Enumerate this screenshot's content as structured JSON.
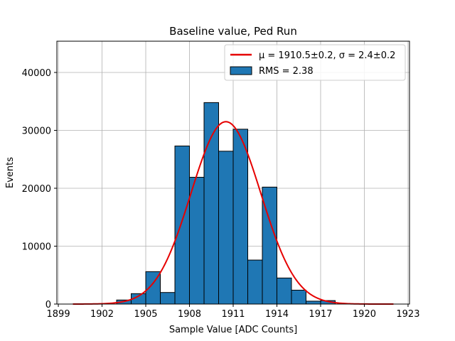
{
  "chart_data": {
    "type": "bar",
    "subtype": "histogram",
    "title": "Baseline value, Ped Run",
    "xlabel": "Sample Value [ADC Counts]",
    "ylabel": "Events",
    "xlim": [
      1898.9,
      1923.1
    ],
    "ylim": [
      0,
      45400
    ],
    "grid": true,
    "xticks": [
      1899,
      1902,
      1905,
      1908,
      1911,
      1914,
      1917,
      1920,
      1923
    ],
    "xtick_labels": [
      "1899",
      "1902",
      "1905",
      "1908",
      "1911",
      "1914",
      "1917",
      "1920",
      "1923"
    ],
    "yticks": [
      0,
      10000,
      20000,
      30000,
      40000
    ],
    "ytick_labels": [
      "0",
      "10000",
      "20000",
      "30000",
      "40000"
    ],
    "bins": [
      {
        "start": 1903,
        "end": 1904,
        "value": 700
      },
      {
        "start": 1904,
        "end": 1905,
        "value": 1800
      },
      {
        "start": 1905,
        "end": 1906,
        "value": 5600
      },
      {
        "start": 1906,
        "end": 1907,
        "value": 2000
      },
      {
        "start": 1907,
        "end": 1908,
        "value": 27300
      },
      {
        "start": 1908,
        "end": 1909,
        "value": 21900
      },
      {
        "start": 1909,
        "end": 1910,
        "value": 34800
      },
      {
        "start": 1910,
        "end": 1911,
        "value": 26400
      },
      {
        "start": 1911,
        "end": 1912,
        "value": 30200
      },
      {
        "start": 1912,
        "end": 1913,
        "value": 7600
      },
      {
        "start": 1913,
        "end": 1914,
        "value": 20200
      },
      {
        "start": 1914,
        "end": 1915,
        "value": 4500
      },
      {
        "start": 1915,
        "end": 1916,
        "value": 2400
      },
      {
        "start": 1916,
        "end": 1917,
        "value": 500
      },
      {
        "start": 1917,
        "end": 1918,
        "value": 600
      }
    ],
    "fit": {
      "name": "Gaussian fit",
      "mu": 1910.5,
      "sigma": 2.4,
      "amplitude": 31500,
      "x_range": [
        1900,
        1922
      ]
    },
    "legend": {
      "position": "top-right",
      "entries": [
        {
          "label_prefix": "μ = 1910.5±0.2, ",
          "label_suffix": "σ = 2.4±0.2",
          "style": "line",
          "color": "#e60000"
        },
        {
          "label": "RMS = 2.38",
          "style": "patch",
          "color": "#1f77b4"
        }
      ]
    },
    "colors": {
      "bar_fill": "#1f77b4",
      "bar_edge": "#000000",
      "fit_line": "#e60000",
      "grid": "#b0b0b0"
    }
  }
}
